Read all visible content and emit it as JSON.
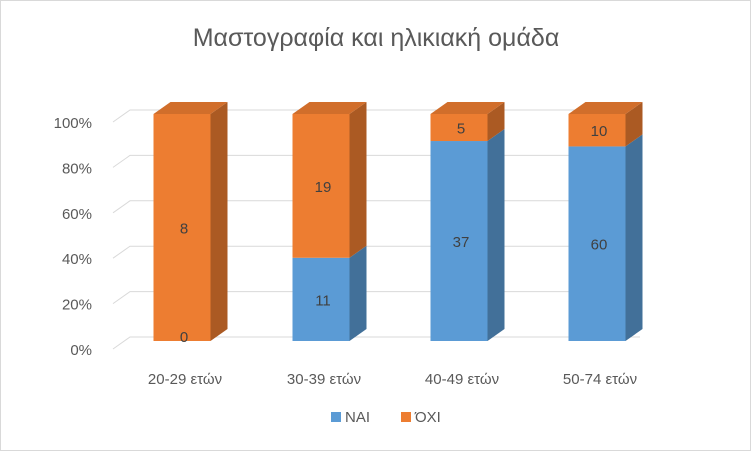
{
  "chart_data": {
    "type": "bar",
    "stacked": "percent",
    "style": "3d-column",
    "title": "Μαστογραφία και ηλικιακή ομάδα",
    "categories": [
      "20-29 ετών",
      "30-39 ετών",
      "40-49 ετών",
      "50-74 ετών"
    ],
    "series": [
      {
        "name": "ΝΑΙ",
        "values": [
          0,
          11,
          37,
          60
        ],
        "color": "#5b9bd5"
      },
      {
        "name": "ΌΧΙ",
        "values": [
          8,
          19,
          5,
          10
        ],
        "color": "#ed7d31"
      }
    ],
    "y_ticks": [
      "0%",
      "20%",
      "40%",
      "60%",
      "80%",
      "100%"
    ],
    "ylim": [
      0,
      100
    ],
    "grid": true,
    "legend_position": "bottom"
  }
}
